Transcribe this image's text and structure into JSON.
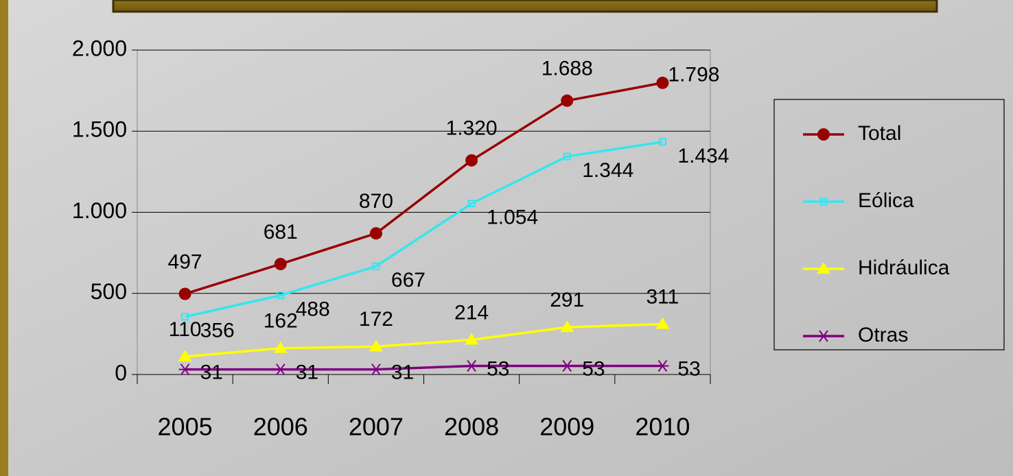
{
  "chart_data": {
    "type": "line",
    "categories": [
      "2005",
      "2006",
      "2007",
      "2008",
      "2009",
      "2010"
    ],
    "ylim": [
      0,
      2000
    ],
    "yticks": [
      0,
      500,
      {
        "value": 1000,
        "label": "1.000"
      },
      {
        "value": 1500,
        "label": "1.500"
      },
      {
        "value": 2000,
        "label": "2.000"
      }
    ],
    "grid": true,
    "legend": "right",
    "series": [
      {
        "name": "Total",
        "color": "#990000",
        "marker": "circle",
        "values": [
          497,
          681,
          870,
          1320,
          1688,
          1798
        ],
        "value_labels": [
          "497",
          "681",
          "870",
          "1.320",
          "1.688",
          "1.798"
        ]
      },
      {
        "name": "Eólica",
        "color": "#33e6f0",
        "marker": "square",
        "values": [
          356,
          488,
          667,
          1054,
          1344,
          1434
        ],
        "value_labels": [
          "356",
          "488",
          "667",
          "1.054",
          "1.344",
          "1.434"
        ]
      },
      {
        "name": "Hidráulica",
        "color": "#ffff00",
        "marker": "triangle",
        "values": [
          110,
          162,
          172,
          214,
          291,
          311
        ]
      },
      {
        "name": "Otras",
        "color": "#800080",
        "marker": "asterisk",
        "values": [
          31,
          31,
          31,
          53,
          53,
          53
        ]
      }
    ]
  }
}
